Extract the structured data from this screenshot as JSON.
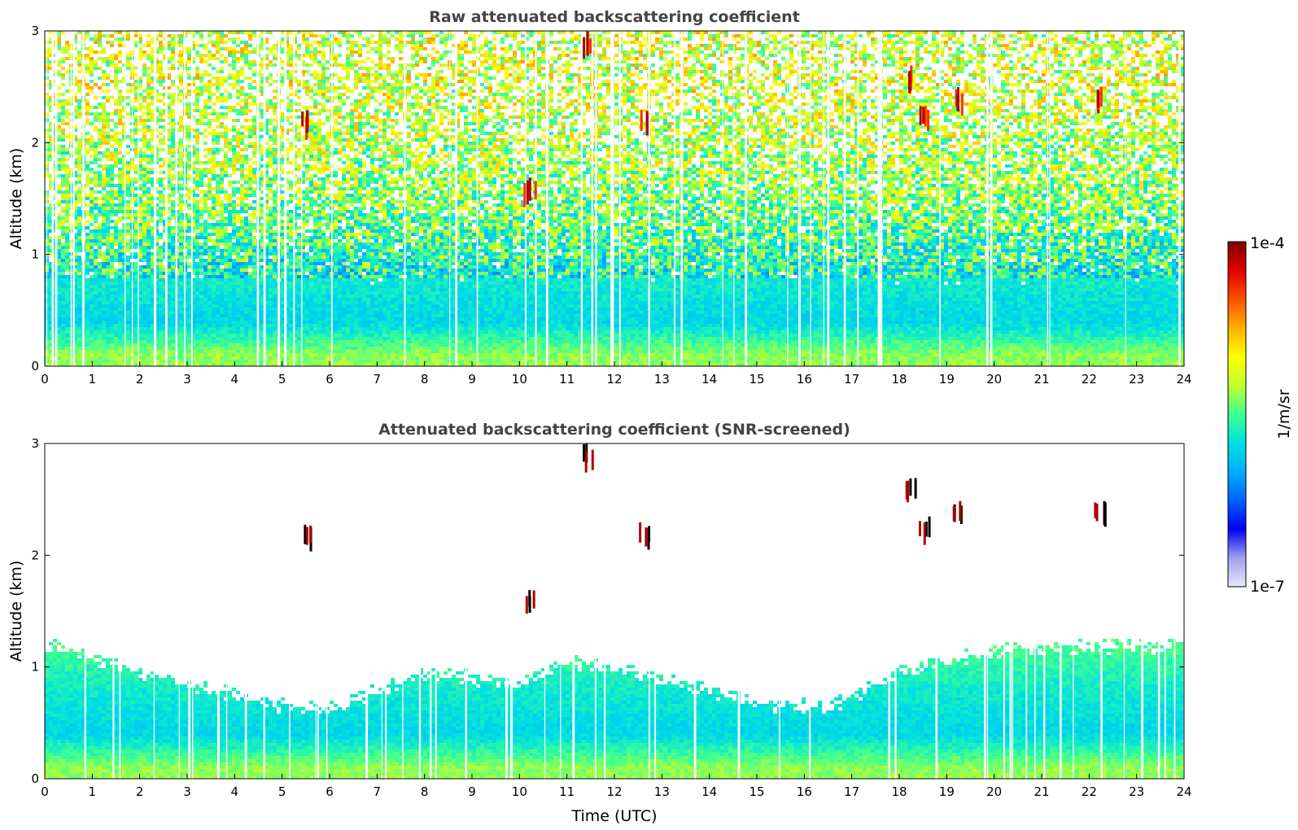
{
  "chart_data": [
    {
      "type": "heatmap",
      "title": "Raw attenuated backscattering coefficient",
      "xlabel": "",
      "ylabel": "Altitude (km)",
      "xlim": [
        0,
        24
      ],
      "ylim": [
        0,
        3
      ],
      "x_ticks": [
        "0",
        "1",
        "2",
        "3",
        "4",
        "5",
        "6",
        "7",
        "8",
        "9",
        "10",
        "11",
        "12",
        "13",
        "14",
        "15",
        "16",
        "17",
        "18",
        "19",
        "20",
        "21",
        "22",
        "23",
        "24"
      ],
      "y_ticks": [
        "0",
        "1",
        "2",
        "3"
      ],
      "grid": false,
      "profile": [
        {
          "altitude_km": 0.1,
          "level": 0.55
        },
        {
          "altitude_km": 0.4,
          "level": 0.4
        },
        {
          "altitude_km": 0.8,
          "level": 0.44
        },
        {
          "altitude_km": 1.5,
          "level": 0.55
        },
        {
          "altitude_km": 2.5,
          "level": 0.62
        }
      ],
      "clouds": [
        {
          "time_utc": 5.5,
          "altitude_km": 2.2
        },
        {
          "time_utc": 10.2,
          "altitude_km": 1.6
        },
        {
          "time_utc": 11.4,
          "altitude_km": 2.9
        },
        {
          "time_utc": 12.6,
          "altitude_km": 2.2
        },
        {
          "time_utc": 18.2,
          "altitude_km": 2.6
        },
        {
          "time_utc": 18.5,
          "altitude_km": 2.25
        },
        {
          "time_utc": 19.2,
          "altitude_km": 2.4
        },
        {
          "time_utc": 22.2,
          "altitude_km": 2.4
        }
      ]
    },
    {
      "type": "heatmap",
      "title": "Attenuated backscattering coefficient (SNR-screened)",
      "xlabel": "Time (UTC)",
      "ylabel": "Altitude (km)",
      "xlim": [
        0,
        24
      ],
      "ylim": [
        0,
        3
      ],
      "x_ticks": [
        "0",
        "1",
        "2",
        "3",
        "4",
        "5",
        "6",
        "7",
        "8",
        "9",
        "10",
        "11",
        "12",
        "13",
        "14",
        "15",
        "16",
        "17",
        "18",
        "19",
        "20",
        "21",
        "22",
        "23",
        "24"
      ],
      "y_ticks": [
        "0",
        "1",
        "2",
        "3"
      ],
      "grid": false,
      "boundary_layer_top": [
        {
          "time_utc": 0,
          "altitude_km": 1.2
        },
        {
          "time_utc": 3,
          "altitude_km": 0.85
        },
        {
          "time_utc": 5,
          "altitude_km": 0.65
        },
        {
          "time_utc": 6,
          "altitude_km": 0.62
        },
        {
          "time_utc": 8,
          "altitude_km": 0.95
        },
        {
          "time_utc": 10,
          "altitude_km": 0.85
        },
        {
          "time_utc": 11,
          "altitude_km": 1.05
        },
        {
          "time_utc": 13,
          "altitude_km": 0.9
        },
        {
          "time_utc": 15,
          "altitude_km": 0.68
        },
        {
          "time_utc": 16.5,
          "altitude_km": 0.62
        },
        {
          "time_utc": 18,
          "altitude_km": 0.95
        },
        {
          "time_utc": 20,
          "altitude_km": 1.15
        },
        {
          "time_utc": 24,
          "altitude_km": 1.2
        }
      ],
      "clouds": [
        {
          "time_utc": 5.5,
          "altitude_km": 2.2
        },
        {
          "time_utc": 10.2,
          "altitude_km": 1.6
        },
        {
          "time_utc": 11.4,
          "altitude_km": 2.9
        },
        {
          "time_utc": 12.6,
          "altitude_km": 2.2
        },
        {
          "time_utc": 18.2,
          "altitude_km": 2.6
        },
        {
          "time_utc": 18.5,
          "altitude_km": 2.25
        },
        {
          "time_utc": 19.2,
          "altitude_km": 2.4
        },
        {
          "time_utc": 22.2,
          "altitude_km": 2.4
        }
      ]
    }
  ],
  "colorbar": {
    "max_label": "1e-4",
    "min_label": "1e-7",
    "unit_label": "1/m/sr",
    "colors": [
      "#e8e8f8",
      "#a0a0f0",
      "#0000f0",
      "#0060ff",
      "#00b0ff",
      "#00e0e0",
      "#40ff90",
      "#c0ff30",
      "#ffff00",
      "#ffb000",
      "#ff5000",
      "#e00000",
      "#7f0000"
    ]
  }
}
